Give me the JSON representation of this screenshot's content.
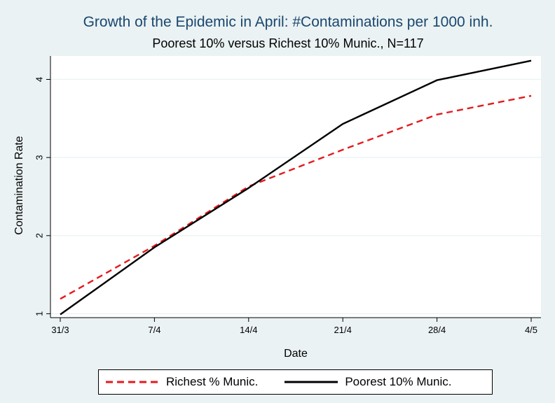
{
  "chart_data": {
    "type": "line",
    "title": "Growth of the Epidemic in April: #Contaminations per 1000 inh.",
    "subtitle": "Poorest 10% versus Richest 10% Munic., N=117",
    "xlabel": "Date",
    "ylabel": "Contamination Rate",
    "x_ticks": [
      "31/3",
      "7/4",
      "14/4",
      "21/4",
      "28/4",
      "4/5"
    ],
    "y_ticks": [
      1,
      2,
      3,
      4
    ],
    "ylim": [
      0.95,
      4.3
    ],
    "grid": true,
    "legend_position": "bottom",
    "series": [
      {
        "name": "Richest % Munic.",
        "style": "dashed",
        "color": "#e41a1c",
        "x": [
          "31/3",
          "7/4",
          "14/4",
          "21/4",
          "28/4",
          "4/5"
        ],
        "values": [
          1.19,
          1.87,
          2.63,
          3.1,
          3.55,
          3.79
        ]
      },
      {
        "name": "Poorest 10% Munic.",
        "style": "solid",
        "color": "#000000",
        "x": [
          "31/3",
          "7/4",
          "14/4",
          "21/4",
          "28/4",
          "4/5"
        ],
        "values": [
          0.99,
          1.85,
          2.61,
          3.43,
          3.99,
          4.24
        ]
      }
    ]
  }
}
